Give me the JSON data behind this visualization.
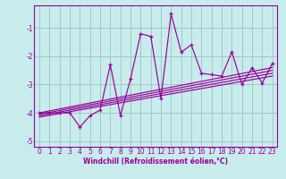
{
  "xlabel": "Windchill (Refroidissement éolien,°C)",
  "bg_color": "#c8ecec",
  "grid_color": "#a0c8c8",
  "line_color": "#990099",
  "xlim": [
    -0.5,
    23.5
  ],
  "ylim": [
    -5.2,
    -0.2
  ],
  "yticks": [
    -5,
    -4,
    -3,
    -2,
    -1
  ],
  "xticks": [
    0,
    1,
    2,
    3,
    4,
    5,
    6,
    7,
    8,
    9,
    10,
    11,
    12,
    13,
    14,
    15,
    16,
    17,
    18,
    19,
    20,
    21,
    22,
    23
  ],
  "data_x": [
    0,
    1,
    2,
    3,
    4,
    5,
    6,
    7,
    8,
    9,
    10,
    11,
    12,
    13,
    14,
    15,
    16,
    17,
    18,
    19,
    20,
    21,
    22,
    23
  ],
  "data_y": [
    -4.0,
    -4.0,
    -4.0,
    -4.0,
    -4.5,
    -4.1,
    -3.9,
    -2.3,
    -4.1,
    -2.8,
    -1.2,
    -1.3,
    -3.5,
    -0.5,
    -1.85,
    -1.6,
    -2.6,
    -2.65,
    -2.7,
    -1.85,
    -3.0,
    -2.4,
    -2.95,
    -2.25
  ],
  "line1_x": [
    0,
    23
  ],
  "line1_y": [
    -4.05,
    -2.5
  ],
  "line2_x": [
    0,
    23
  ],
  "line2_y": [
    -4.1,
    -2.6
  ],
  "line3_x": [
    0,
    23
  ],
  "line3_y": [
    -4.15,
    -2.7
  ],
  "line4_x": [
    0,
    23
  ],
  "line4_y": [
    -4.0,
    -2.4
  ]
}
